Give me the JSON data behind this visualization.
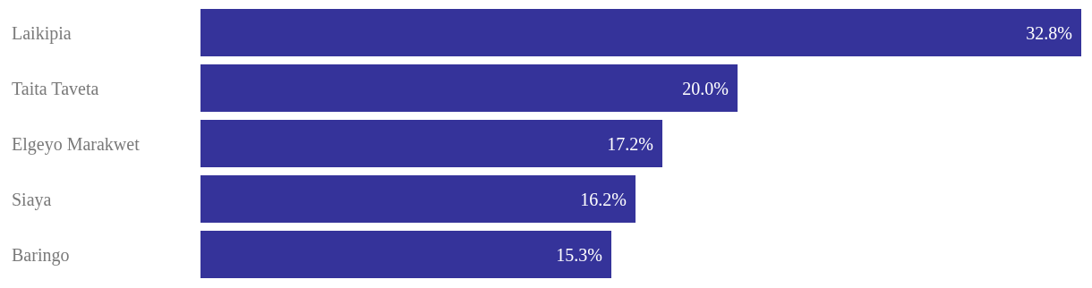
{
  "chart_data": {
    "type": "bar",
    "orientation": "horizontal",
    "categories": [
      "Laikipia",
      "Taita Taveta",
      "Elgeyo Marakwet",
      "Siaya",
      "Baringo"
    ],
    "values": [
      32.8,
      20.0,
      17.2,
      16.2,
      15.3
    ],
    "color": "#35339a",
    "value_labels": [
      "32.8%",
      "20.0%",
      "17.2%",
      "16.2%",
      "15.3%"
    ]
  }
}
